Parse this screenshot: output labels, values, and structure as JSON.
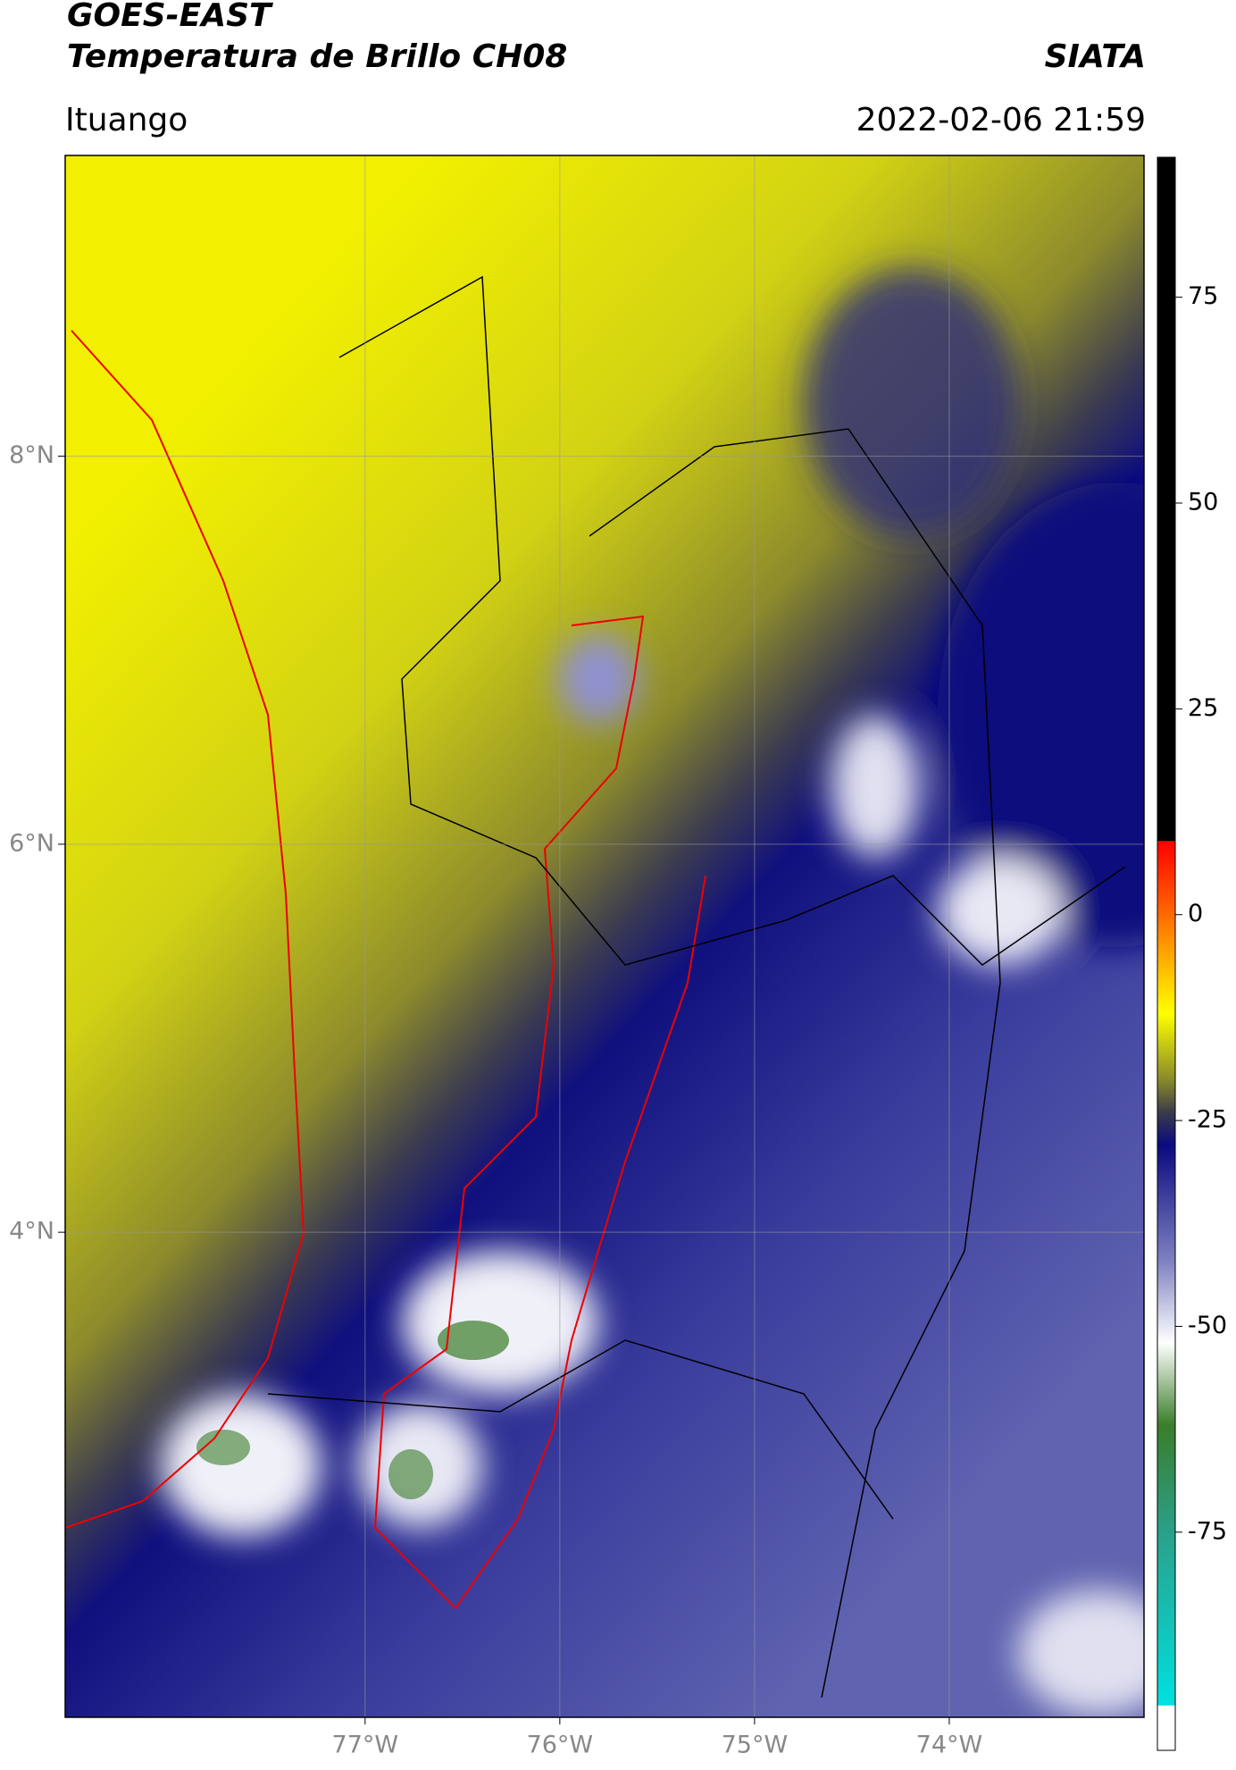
{
  "header": {
    "title_line1": "GOES-EAST",
    "title_line2": "Temperatura de Brillo CH08",
    "organization": "SIATA",
    "location": "Ituango",
    "datetime": "2022-02-06 21:59"
  },
  "map": {
    "xlim": [
      -78.54,
      -73.0
    ],
    "ylim": [
      1.5,
      9.55
    ],
    "xticks": [
      {
        "value": -77,
        "label": "77°W"
      },
      {
        "value": -76,
        "label": "76°W"
      },
      {
        "value": -75,
        "label": "75°W"
      },
      {
        "value": -74,
        "label": "74°W"
      }
    ],
    "yticks": [
      {
        "value": 8,
        "label": "8°N"
      },
      {
        "value": 6,
        "label": "6°N"
      },
      {
        "value": 4,
        "label": "4°N"
      }
    ],
    "grid": true
  },
  "colorbar": {
    "range": [
      -101.5,
      92
    ],
    "ticks": [
      75,
      50,
      25,
      0,
      -25,
      -50,
      -75
    ],
    "stops": [
      {
        "value": 92,
        "color": "#000000"
      },
      {
        "value": 9,
        "color": "#000000"
      },
      {
        "value": 8.9,
        "color": "#ff0000"
      },
      {
        "value": 0,
        "color": "#ff6a00"
      },
      {
        "value": -12,
        "color": "#ffff00"
      },
      {
        "value": -20,
        "color": "#8a8a2a"
      },
      {
        "value": -24,
        "color": "#3b3b4a"
      },
      {
        "value": -28,
        "color": "#0a0a80"
      },
      {
        "value": -42,
        "color": "#7d80c0"
      },
      {
        "value": -52,
        "color": "#ffffff"
      },
      {
        "value": -62,
        "color": "#3a7d2a"
      },
      {
        "value": -75,
        "color": "#2aa08a"
      },
      {
        "value": -96,
        "color": "#00e0e0"
      },
      {
        "value": -96.1,
        "color": "#ffffff"
      },
      {
        "value": -101.5,
        "color": "#ffffff"
      }
    ]
  }
}
